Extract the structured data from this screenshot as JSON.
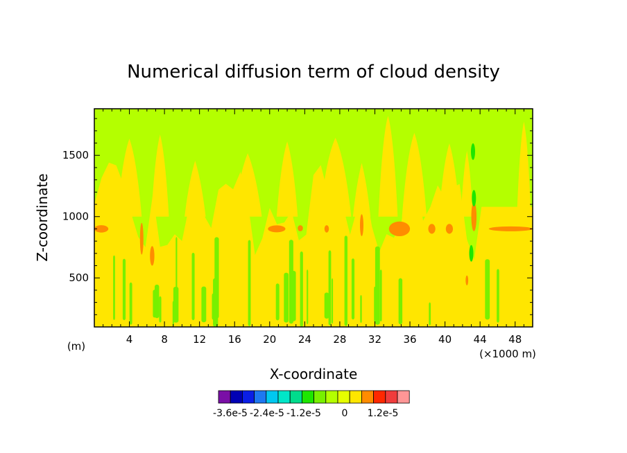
{
  "chart_data": {
    "type": "heatmap",
    "title": "Numerical diffusion term of cloud density",
    "xlabel": "X-coordinate",
    "ylabel": "Z-coordinate",
    "x_unit_label": "(×1000 m)",
    "y_unit_label": "(m)",
    "xlim": [
      0,
      50
    ],
    "ylim": [
      100,
      1880
    ],
    "x_ticks": [
      4,
      8,
      12,
      16,
      20,
      24,
      28,
      32,
      36,
      40,
      44,
      48
    ],
    "y_ticks": [
      500,
      1000,
      1500
    ],
    "grid": false,
    "colorbar": {
      "colors": [
        "#7a0fa6",
        "#0000b4",
        "#0a1ee6",
        "#1e78f0",
        "#00c8f0",
        "#00e6c8",
        "#00dc8c",
        "#1ee600",
        "#78f000",
        "#b4ff00",
        "#e6ff00",
        "#ffe600",
        "#ff8c00",
        "#ff2800",
        "#f03c3c",
        "#ff9696"
      ],
      "tick_labels": [
        "-3.6e-5",
        "-2.4e-5",
        "-1.2e-5",
        "0",
        "1.2e-5"
      ]
    },
    "field_colors": {
      "background": "#b4ff00",
      "positive_small": "#e6ff00",
      "positive": "#ffe600",
      "positive_large": "#ff8c00",
      "negative_small": "#78f000",
      "negative": "#1ee600"
    }
  }
}
